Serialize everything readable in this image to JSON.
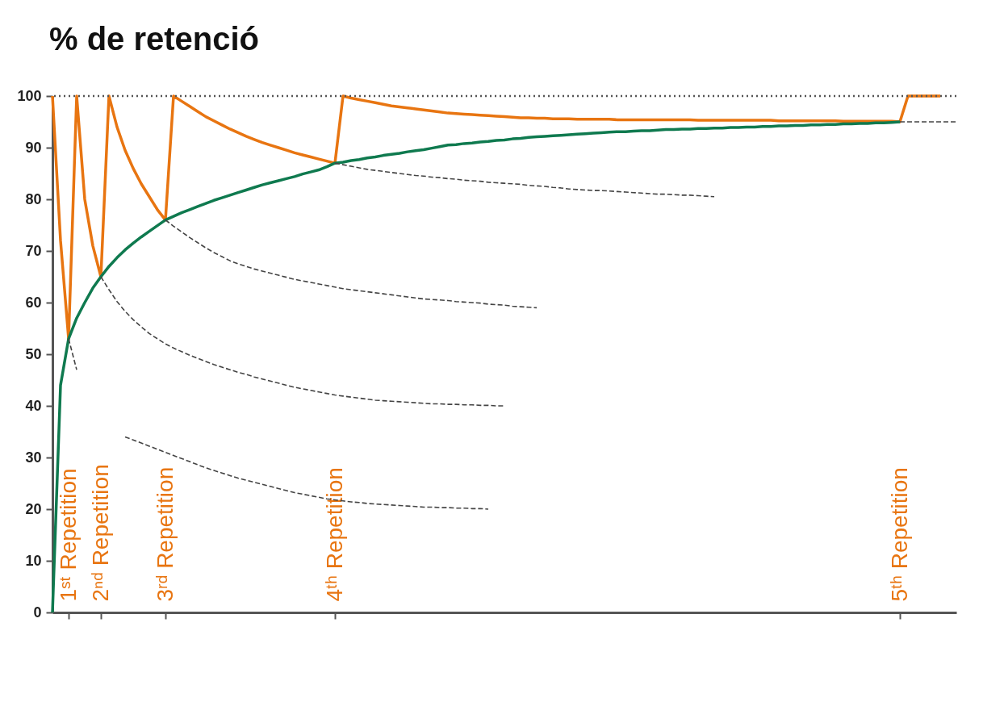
{
  "chart_data": {
    "type": "line",
    "title": "% de retenció",
    "categories": [
      null,
      null,
      "1ˢᵗ Repetition",
      null,
      null,
      null,
      "2ⁿᵈ Repetition",
      null,
      null,
      null,
      null,
      null,
      null,
      null,
      "3ʳᵈ Repetition",
      null,
      null,
      null,
      null,
      null,
      null,
      null,
      null,
      null,
      null,
      null,
      null,
      null,
      null,
      null,
      null,
      null,
      null,
      null,
      null,
      "4ᵗʰ Repetition",
      null,
      null,
      null,
      null,
      null,
      null,
      null,
      null,
      null,
      null,
      null,
      null,
      null,
      null,
      null,
      null,
      null,
      null,
      null,
      null,
      null,
      null,
      null,
      null,
      null,
      null,
      null,
      null,
      null,
      null,
      null,
      null,
      null,
      null,
      null,
      null,
      null,
      null,
      null,
      null,
      null,
      null,
      null,
      null,
      null,
      null,
      null,
      null,
      null,
      null,
      null,
      null,
      null,
      null,
      null,
      null,
      null,
      null,
      null,
      null,
      null,
      null,
      null,
      null,
      null,
      null,
      null,
      null,
      null,
      "5ᵗʰ Repetition",
      null,
      null,
      null,
      null,
      null,
      null,
      null
    ],
    "ylim": [
      0,
      100
    ],
    "yticks": [
      0,
      10,
      20,
      30,
      40,
      50,
      60,
      70,
      80,
      90,
      100
    ],
    "grid": false,
    "marker": "none",
    "ref_lines": [
      {
        "axis": "y",
        "value": 100,
        "line_style": "dotted",
        "color": "#555555"
      }
    ],
    "series": [
      {
        "color": "#444444",
        "line_style": "dashed",
        "values": [
          null,
          null,
          53,
          47,
          null,
          null,
          null,
          null,
          null,
          null,
          null,
          null,
          null,
          null,
          null,
          null,
          null,
          null,
          null,
          null,
          null,
          null,
          null,
          null,
          null,
          null,
          null,
          null,
          null,
          null,
          null,
          null,
          null,
          null,
          null,
          null,
          null,
          null,
          null,
          null,
          null,
          null,
          null,
          null,
          null,
          null,
          null,
          null,
          null,
          null,
          null,
          null,
          null,
          null,
          null,
          null,
          null,
          null,
          null,
          null,
          null,
          null,
          null,
          null,
          null,
          null,
          null,
          null,
          null,
          null,
          null,
          null,
          null,
          null,
          null,
          null,
          null,
          null,
          null,
          null,
          null,
          null,
          null,
          null,
          null,
          null,
          null,
          null,
          null,
          null,
          null,
          null,
          null,
          null,
          null,
          null,
          null,
          null,
          null,
          null,
          null,
          null,
          null,
          null,
          null,
          null,
          null,
          null,
          null,
          null,
          null,
          null,
          null
        ]
      },
      {
        "color": "#444444",
        "line_style": "dashed",
        "values": [
          null,
          null,
          null,
          null,
          null,
          null,
          65,
          62.5,
          60.2,
          58.3,
          56.7,
          55.3,
          54,
          53,
          52,
          51.2,
          50.5,
          49.8,
          49.2,
          48.6,
          48,
          47.5,
          47,
          46.5,
          46.1,
          45.6,
          45.2,
          44.8,
          44.4,
          44,
          43.6,
          43.3,
          43,
          42.7,
          42.4,
          42.1,
          41.9,
          41.7,
          41.5,
          41.3,
          41.1,
          41,
          40.9,
          40.8,
          40.7,
          40.6,
          40.5,
          40.4,
          40.4,
          40.3,
          40.3,
          40.2,
          40.2,
          40.1,
          40.1,
          40,
          40,
          null,
          null,
          null,
          null,
          null,
          null,
          null,
          null,
          null,
          null,
          null,
          null,
          null,
          null,
          null,
          null,
          null,
          null,
          null,
          null,
          null,
          null,
          null,
          null,
          null,
          null,
          null,
          null,
          null,
          null,
          null,
          null,
          null,
          null,
          null,
          null,
          null,
          null,
          null,
          null,
          null,
          null,
          null,
          null,
          null,
          null,
          null,
          null,
          null,
          null,
          null,
          null,
          null,
          null,
          null,
          null
        ]
      },
      {
        "color": "#444444",
        "line_style": "dashed",
        "values": [
          null,
          null,
          null,
          null,
          null,
          null,
          null,
          null,
          null,
          null,
          null,
          null,
          null,
          null,
          76,
          74.8,
          73.7,
          72.6,
          71.6,
          70.6,
          69.7,
          68.9,
          68.1,
          67.5,
          67,
          66.5,
          66.1,
          65.7,
          65.3,
          64.9,
          64.5,
          64.2,
          63.9,
          63.6,
          63.3,
          63,
          62.7,
          62.5,
          62.3,
          62.1,
          61.9,
          61.7,
          61.5,
          61.3,
          61.1,
          60.9,
          60.7,
          60.6,
          60.5,
          60.4,
          60.2,
          60.1,
          60,
          59.9,
          59.7,
          59.6,
          59.5,
          59.3,
          59.2,
          59.1,
          59,
          null,
          null,
          null,
          null,
          null,
          null,
          null,
          null,
          null,
          null,
          null,
          null,
          null,
          null,
          null,
          null,
          null,
          null,
          null,
          null,
          null,
          null,
          null,
          null,
          null,
          null,
          null,
          null,
          null,
          null,
          null,
          null,
          null,
          null,
          null,
          null,
          null,
          null,
          null,
          null,
          null,
          null,
          null,
          null,
          null,
          null,
          null,
          null,
          null,
          null,
          null,
          null
        ]
      },
      {
        "color": "#444444",
        "line_style": "dashed",
        "values": [
          null,
          null,
          null,
          null,
          null,
          null,
          null,
          null,
          null,
          null,
          null,
          null,
          null,
          null,
          null,
          null,
          null,
          null,
          null,
          null,
          null,
          null,
          null,
          null,
          null,
          null,
          null,
          null,
          null,
          null,
          null,
          null,
          null,
          null,
          null,
          87,
          86.7,
          86.4,
          86.1,
          85.8,
          85.6,
          85.4,
          85.2,
          85,
          84.8,
          84.6,
          84.5,
          84.3,
          84.2,
          84,
          83.9,
          83.7,
          83.6,
          83.5,
          83.3,
          83.2,
          83.1,
          83,
          82.9,
          82.7,
          82.6,
          82.5,
          82.3,
          82.2,
          82,
          81.9,
          81.8,
          81.7,
          81.7,
          81.6,
          81.5,
          81.4,
          81.3,
          81.2,
          81.1,
          81,
          81,
          80.9,
          80.8,
          80.8,
          80.7,
          80.6,
          80.5,
          null,
          null,
          null,
          null,
          null,
          null,
          null,
          null,
          null,
          null,
          null,
          null,
          null,
          null,
          null,
          null,
          null,
          null,
          null,
          null,
          null,
          null,
          null,
          null,
          null,
          null,
          null,
          null,
          null,
          null
        ]
      },
      {
        "color": "#444444",
        "line_style": "dashed",
        "values": [
          null,
          null,
          null,
          null,
          null,
          null,
          null,
          null,
          null,
          null,
          null,
          null,
          null,
          null,
          null,
          null,
          null,
          null,
          null,
          null,
          null,
          null,
          null,
          null,
          null,
          null,
          null,
          null,
          null,
          null,
          null,
          null,
          null,
          null,
          null,
          null,
          null,
          null,
          null,
          null,
          null,
          null,
          null,
          null,
          null,
          null,
          null,
          null,
          null,
          null,
          null,
          null,
          null,
          null,
          null,
          null,
          null,
          null,
          null,
          null,
          null,
          null,
          null,
          null,
          null,
          null,
          null,
          null,
          null,
          null,
          null,
          null,
          null,
          null,
          null,
          null,
          null,
          null,
          null,
          null,
          null,
          null,
          null,
          null,
          null,
          null,
          null,
          null,
          null,
          null,
          null,
          null,
          null,
          null,
          null,
          null,
          null,
          null,
          null,
          null,
          null,
          null,
          null,
          null,
          null,
          95,
          95,
          95,
          95,
          95,
          95,
          95,
          95
        ]
      },
      {
        "color": "#444444",
        "line_style": "dashed",
        "values": [
          null,
          null,
          null,
          null,
          null,
          null,
          null,
          null,
          null,
          34,
          33.4,
          32.8,
          32.2,
          31.6,
          31,
          30.4,
          29.8,
          29.2,
          28.6,
          28,
          27.5,
          27,
          26.5,
          26,
          25.6,
          25.2,
          24.8,
          24.4,
          24,
          23.6,
          23.2,
          22.9,
          22.6,
          22.3,
          22,
          21.8,
          21.6,
          21.4,
          21.3,
          21.1,
          21,
          20.9,
          20.8,
          20.7,
          20.6,
          20.5,
          20.4,
          20.4,
          20.3,
          20.3,
          20.2,
          20.2,
          20.1,
          20.1,
          20,
          null,
          null,
          null,
          null,
          null,
          null,
          null,
          null,
          null,
          null,
          null,
          null,
          null,
          null,
          null,
          null,
          null,
          null,
          null,
          null,
          null,
          null,
          null,
          null,
          null,
          null,
          null,
          null,
          null,
          null,
          null,
          null,
          null,
          null,
          null,
          null,
          null,
          null,
          null,
          null,
          null,
          null,
          null,
          null,
          null,
          null,
          null,
          null,
          null,
          null,
          null,
          null,
          null,
          null,
          null,
          null,
          null,
          null
        ]
      },
      {
        "color": "#e87511",
        "line_style": "solid",
        "values": [
          100,
          72,
          53,
          100,
          80,
          71,
          65,
          100,
          94,
          89.5,
          86,
          83,
          80.5,
          78,
          76,
          100,
          99,
          98,
          97,
          96,
          95.2,
          94.4,
          93.6,
          92.9,
          92.2,
          91.6,
          91,
          90.5,
          90,
          89.5,
          89,
          88.6,
          88.2,
          87.8,
          87.4,
          87,
          100,
          99.6,
          99.3,
          99,
          98.7,
          98.4,
          98.1,
          97.9,
          97.7,
          97.5,
          97.3,
          97.1,
          96.9,
          96.7,
          96.6,
          96.5,
          96.4,
          96.3,
          96.2,
          96.1,
          96,
          95.9,
          95.8,
          95.8,
          95.7,
          95.7,
          95.6,
          95.6,
          95.6,
          95.5,
          95.5,
          95.5,
          95.5,
          95.5,
          95.4,
          95.4,
          95.4,
          95.4,
          95.4,
          95.4,
          95.4,
          95.4,
          95.4,
          95.4,
          95.3,
          95.3,
          95.3,
          95.3,
          95.3,
          95.3,
          95.3,
          95.3,
          95.3,
          95.3,
          95.2,
          95.2,
          95.2,
          95.2,
          95.2,
          95.2,
          95.2,
          95.2,
          95.1,
          95.1,
          95.1,
          95.1,
          95.1,
          95.1,
          95.1,
          95,
          100,
          100,
          100,
          100,
          100,
          null,
          null
        ]
      },
      {
        "color": "#0f7a4f",
        "line_style": "solid",
        "values": [
          0,
          44,
          53,
          57,
          60,
          62.8,
          65,
          67,
          68.7,
          70.2,
          71.5,
          72.7,
          73.8,
          74.9,
          76,
          76.7,
          77.4,
          78,
          78.6,
          79.2,
          79.8,
          80.3,
          80.8,
          81.3,
          81.8,
          82.3,
          82.8,
          83.2,
          83.6,
          84,
          84.4,
          84.9,
          85.3,
          85.7,
          86.3,
          87,
          87.2,
          87.5,
          87.7,
          88,
          88.2,
          88.5,
          88.7,
          88.9,
          89.2,
          89.4,
          89.6,
          89.9,
          90.2,
          90.5,
          90.6,
          90.8,
          90.9,
          91.1,
          91.2,
          91.4,
          91.5,
          91.7,
          91.8,
          92,
          92.1,
          92.2,
          92.3,
          92.4,
          92.5,
          92.6,
          92.7,
          92.8,
          92.9,
          93,
          93.1,
          93.1,
          93.2,
          93.3,
          93.3,
          93.4,
          93.5,
          93.5,
          93.6,
          93.6,
          93.7,
          93.7,
          93.8,
          93.8,
          93.9,
          93.9,
          94,
          94,
          94.1,
          94.1,
          94.2,
          94.2,
          94.3,
          94.3,
          94.4,
          94.4,
          94.5,
          94.5,
          94.6,
          94.6,
          94.7,
          94.7,
          94.8,
          94.8,
          94.9,
          95,
          null,
          null,
          null,
          null,
          null,
          null,
          null
        ]
      }
    ]
  }
}
